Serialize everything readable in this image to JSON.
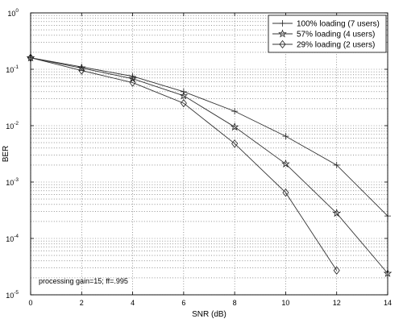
{
  "chart_data": {
    "type": "line",
    "xlabel": "SNR (dB)",
    "ylabel": "BER",
    "xlim": [
      0,
      14
    ],
    "ylim": [
      1e-05,
      1
    ],
    "yscale": "log",
    "x_ticks": [
      "0",
      "2",
      "4",
      "6",
      "8",
      "10",
      "12",
      "14"
    ],
    "y_ticks": [
      {
        "base": "10",
        "exp": "0"
      },
      {
        "base": "10",
        "exp": "-1"
      },
      {
        "base": "10",
        "exp": "-2"
      },
      {
        "base": "10",
        "exp": "-3"
      },
      {
        "base": "10",
        "exp": "-4"
      },
      {
        "base": "10",
        "exp": "-5"
      }
    ],
    "grid": true,
    "legend_position": "top-right",
    "annotation": "processing gain=15; ff=.995",
    "series": [
      {
        "name": "100% loading (7 users)",
        "marker": "plus",
        "x": [
          0,
          2,
          4,
          6,
          8,
          10,
          12,
          14
        ],
        "y": [
          0.16,
          0.11,
          0.075,
          0.04,
          0.018,
          0.0065,
          0.002,
          0.00025
        ]
      },
      {
        "name": "57% loading (4 users)",
        "marker": "star",
        "x": [
          0,
          2,
          4,
          6,
          8,
          10,
          12,
          14
        ],
        "y": [
          0.16,
          0.105,
          0.068,
          0.034,
          0.0095,
          0.0021,
          0.00028,
          2.4e-05
        ]
      },
      {
        "name": "29% loading (2 users)",
        "marker": "diamond",
        "x": [
          0,
          2,
          4,
          6,
          8,
          10,
          12
        ],
        "y": [
          0.16,
          0.095,
          0.058,
          0.025,
          0.0048,
          0.00065,
          2.7e-05
        ]
      }
    ]
  }
}
